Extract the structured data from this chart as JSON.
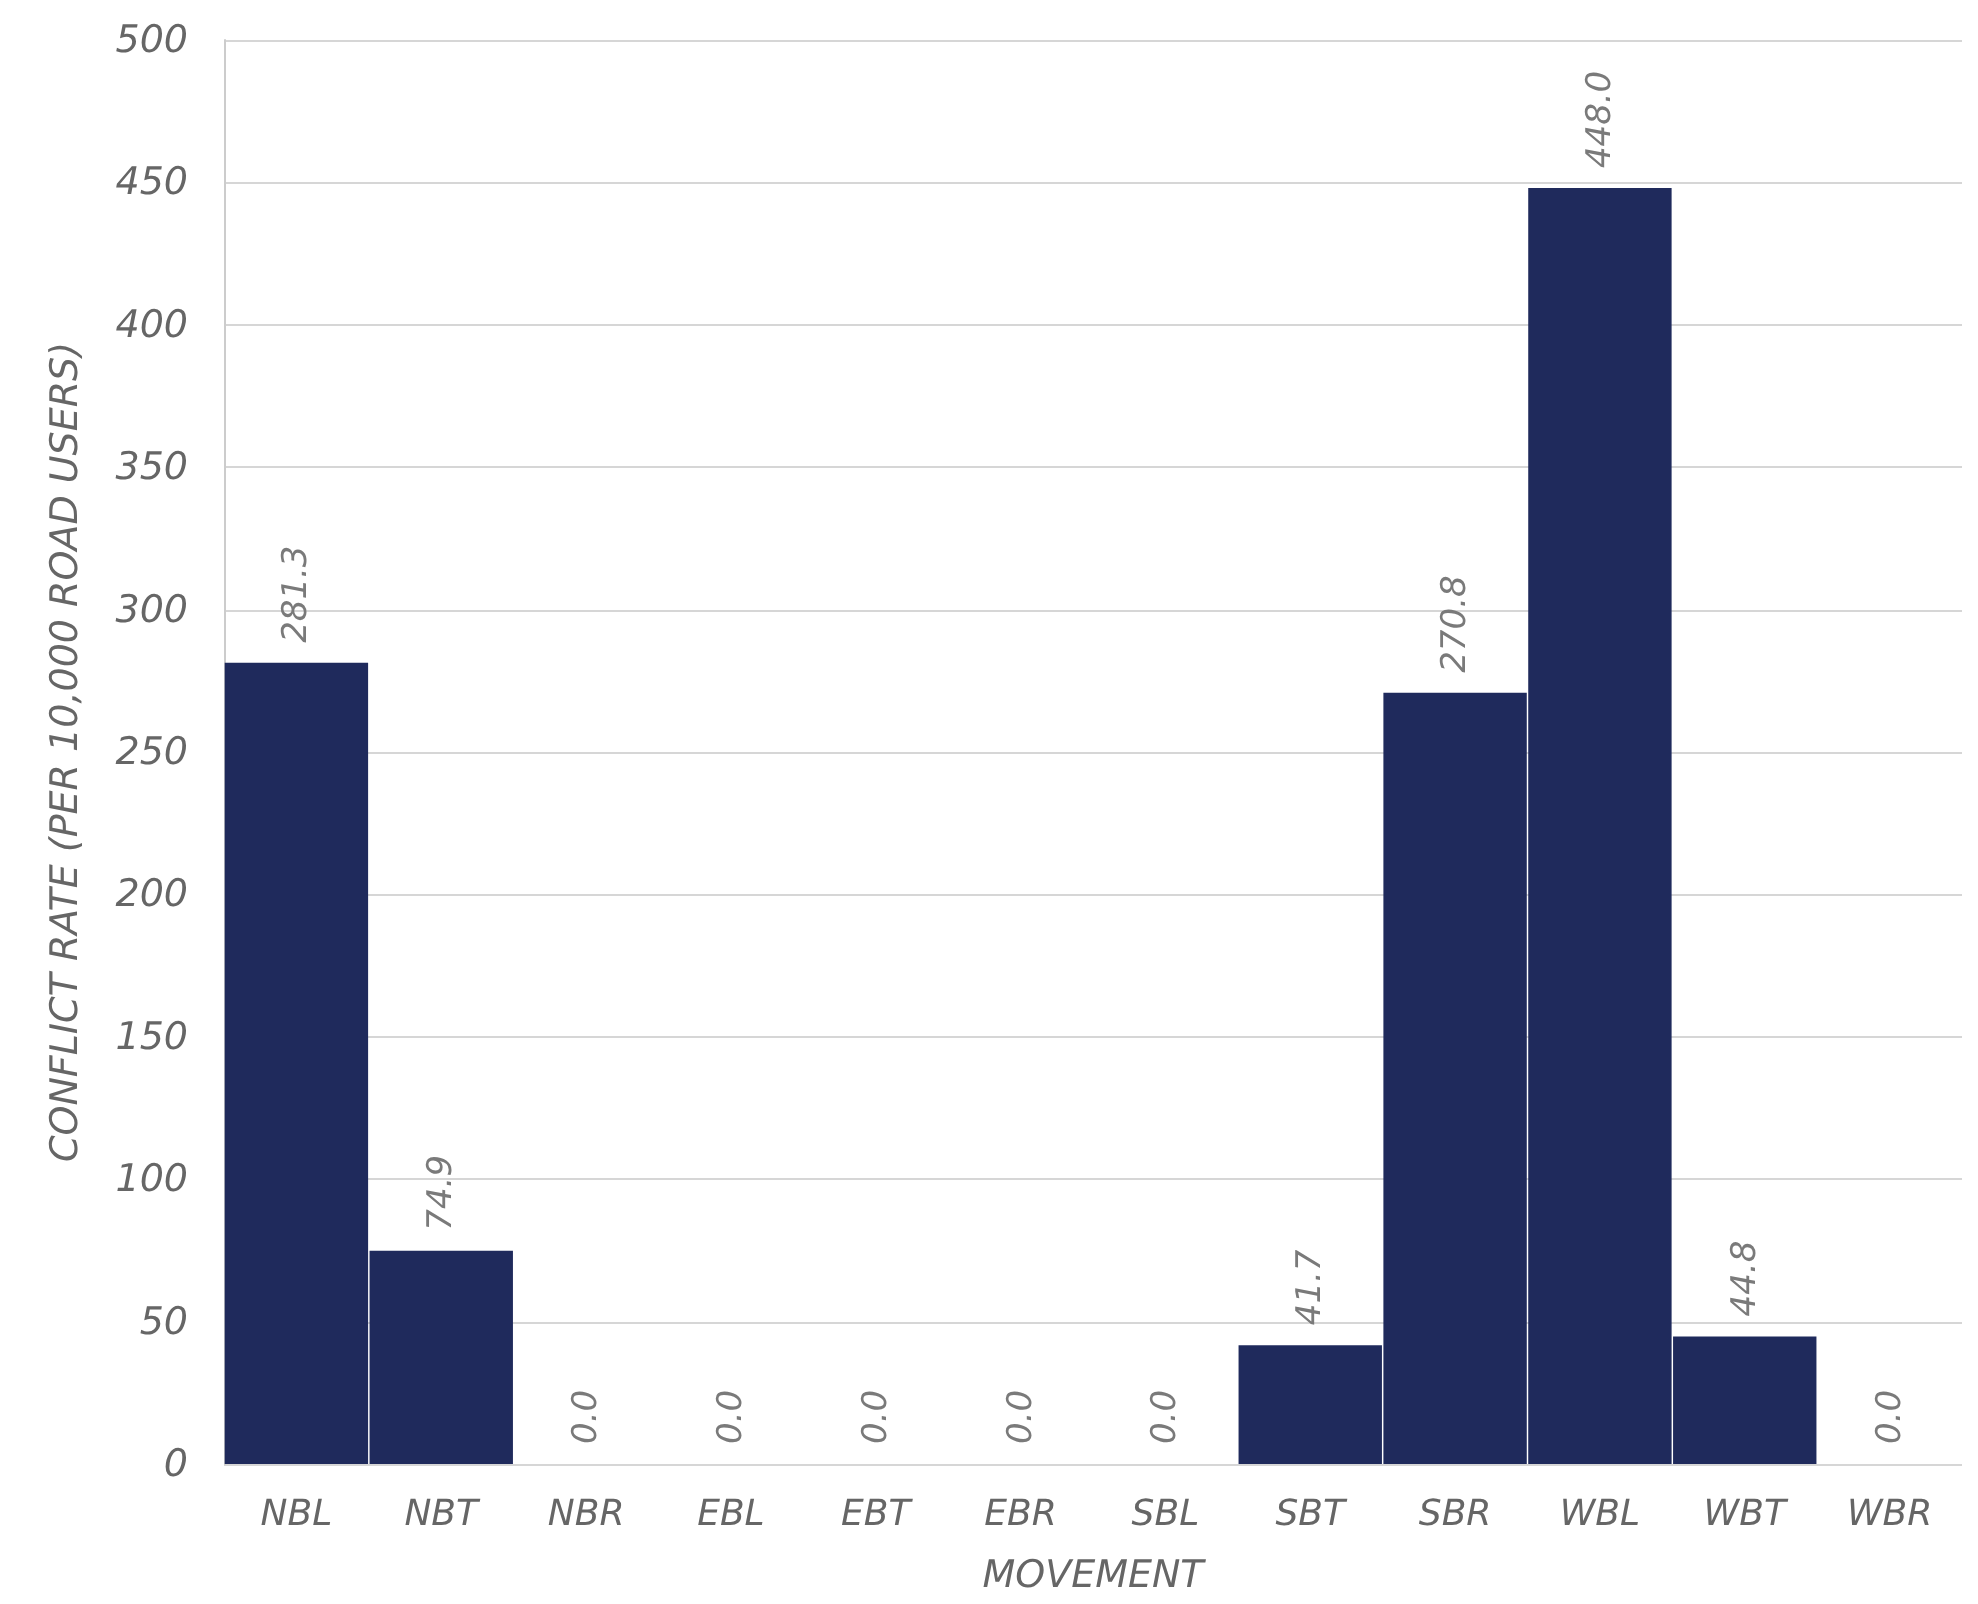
{
  "chart_data": {
    "type": "bar",
    "xlabel": "MOVEMENT",
    "ylabel": "CONFLICT RATE (PER 10,000 ROAD USERS)",
    "categories": [
      "NBL",
      "NBT",
      "NBR",
      "EBL",
      "EBT",
      "EBR",
      "SBL",
      "SBT",
      "SBR",
      "WBL",
      "WBT",
      "WBR"
    ],
    "values": [
      281.3,
      74.9,
      0.0,
      0.0,
      0.0,
      0.0,
      0.0,
      41.7,
      270.8,
      448.0,
      44.8,
      0.0
    ],
    "value_labels": [
      "281.3",
      "74.9",
      "0.0",
      "0.0",
      "0.0",
      "0.0",
      "0.0",
      "41.7",
      "270.8",
      "448.0",
      "44.8",
      "0.0"
    ],
    "color": "#1f2a5c",
    "ylim": [
      0,
      500
    ],
    "yticks": [
      0,
      50,
      100,
      150,
      200,
      250,
      300,
      350,
      400,
      450,
      500
    ],
    "grid": "y"
  }
}
